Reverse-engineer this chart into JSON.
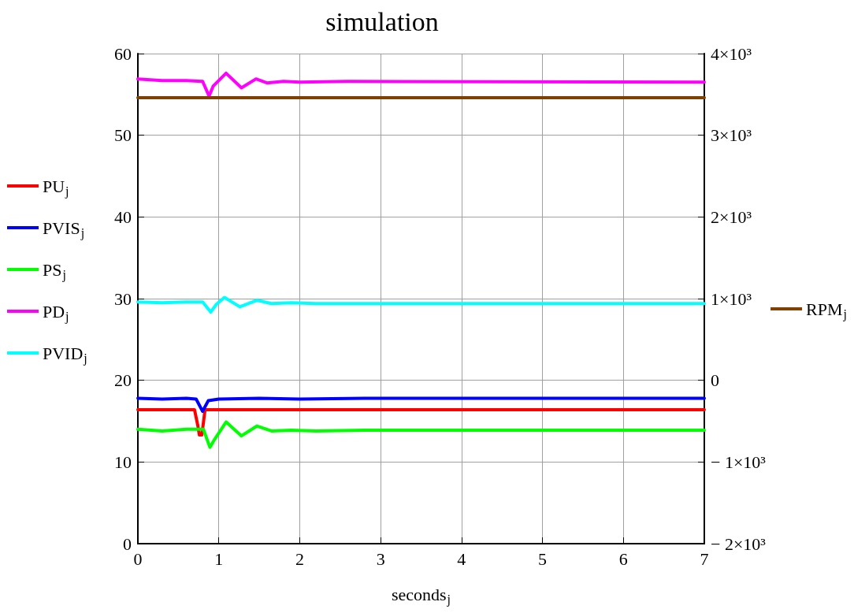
{
  "chart_data": {
    "type": "line",
    "title": "simulation",
    "xlabel": "seconds$_{j}$",
    "xlim": [
      0,
      7
    ],
    "xticks": [
      0,
      1,
      2,
      3,
      4,
      5,
      6,
      7
    ],
    "ylim": [
      0,
      60
    ],
    "yticks": [
      0,
      10,
      20,
      30,
      40,
      50,
      60
    ],
    "y2lim": [
      -2000,
      4000
    ],
    "y2ticks": [
      {
        "value": -2000,
        "label": "− 2×10³"
      },
      {
        "value": -1000,
        "label": "− 1×10³"
      },
      0,
      {
        "value": 1000,
        "label": "1×10³"
      },
      {
        "value": 2000,
        "label": "2×10³"
      },
      {
        "value": 3000,
        "label": "3×10³"
      },
      {
        "value": 4000,
        "label": "4×10³"
      }
    ],
    "grid": true,
    "legend": "left",
    "marker": "none",
    "line_style": "solid",
    "series": [
      {
        "name": "PU$_{j}$",
        "color": "#ff0000",
        "x": [
          0,
          0.7,
          0.74,
          0.76,
          0.79,
          0.81,
          0.83,
          7
        ],
        "values": [
          16.4,
          16.4,
          14.5,
          13.3,
          13.3,
          14.8,
          16.4,
          16.4
        ]
      },
      {
        "name": "PVIS$_{j}$",
        "color": "#0000ff",
        "x": [
          0,
          0.3,
          0.6,
          0.72,
          0.8,
          0.87,
          1.0,
          1.5,
          2.0,
          2.8,
          7
        ],
        "values": [
          17.8,
          17.7,
          17.8,
          17.7,
          16.2,
          17.5,
          17.7,
          17.8,
          17.7,
          17.8,
          17.8
        ]
      },
      {
        "name": "PS$_{j}$",
        "color": "#00ff00",
        "x": [
          0,
          0.3,
          0.6,
          0.81,
          0.89,
          0.95,
          1.09,
          1.28,
          1.47,
          1.65,
          1.9,
          2.2,
          2.8,
          7
        ],
        "values": [
          14.0,
          13.8,
          14.0,
          14.0,
          11.8,
          12.8,
          14.9,
          13.2,
          14.4,
          13.8,
          13.9,
          13.8,
          13.9,
          13.9
        ]
      },
      {
        "name": "PD$_{j}$",
        "color": "#ff00ff",
        "x": [
          0,
          0.3,
          0.6,
          0.8,
          0.88,
          0.93,
          1.09,
          1.28,
          1.46,
          1.6,
          1.8,
          2.0,
          2.6,
          7
        ],
        "values": [
          56.9,
          56.7,
          56.7,
          56.6,
          54.8,
          56.0,
          57.6,
          55.8,
          56.9,
          56.4,
          56.6,
          56.5,
          56.6,
          56.5
        ]
      },
      {
        "name": "PVID$_{j}$",
        "color": "#00ffff",
        "x": [
          0,
          0.3,
          0.6,
          0.8,
          0.9,
          0.97,
          1.07,
          1.26,
          1.47,
          1.65,
          1.9,
          2.2,
          7
        ],
        "values": [
          29.6,
          29.5,
          29.6,
          29.6,
          28.35,
          29.3,
          30.15,
          29.0,
          29.8,
          29.4,
          29.5,
          29.4,
          29.4
        ]
      },
      {
        "name": "RPM$_{j}$",
        "color": "#804000",
        "axis": "y2",
        "x": [
          0,
          7
        ],
        "values": [
          3460,
          3460
        ]
      }
    ]
  }
}
